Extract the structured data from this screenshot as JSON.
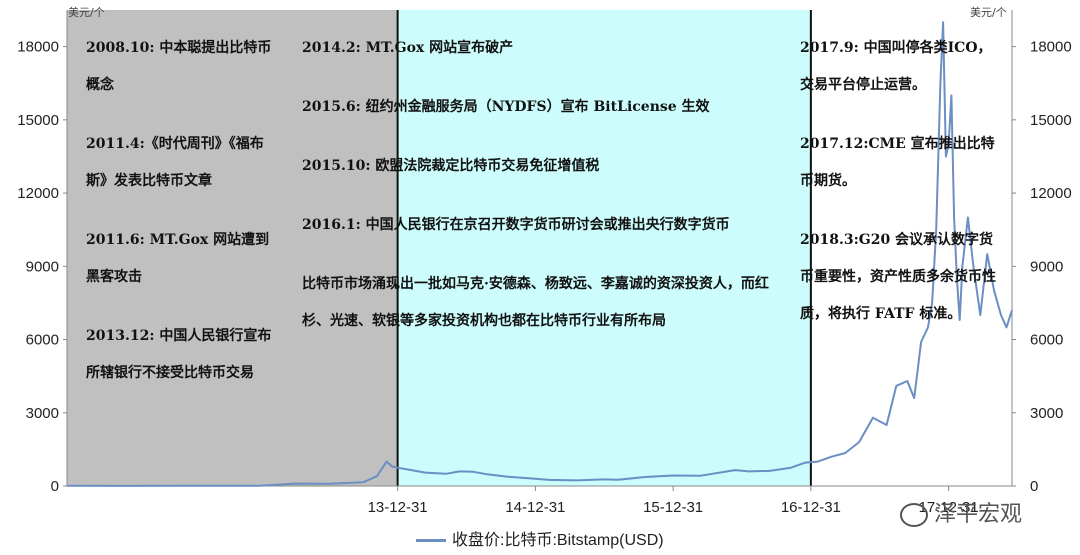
{
  "chart_data": {
    "type": "line",
    "left_unit": "美元/个",
    "right_unit": "美元/个",
    "y_ticks": [
      0,
      3000,
      6000,
      9000,
      12000,
      15000,
      18000
    ],
    "ylim": [
      0,
      19500
    ],
    "x_tick_labels": [
      "13-12-31",
      "14-12-31",
      "15-12-31",
      "16-12-31",
      "17-12-31"
    ],
    "series": [
      {
        "name": "收盘价:比特币:Bitstamp(USD)",
        "color": "#6b8ec3",
        "points": [
          [
            2011.6,
            10
          ],
          [
            2012.0,
            6
          ],
          [
            2012.4,
            7
          ],
          [
            2012.8,
            11
          ],
          [
            2013.0,
            13
          ],
          [
            2013.25,
            100
          ],
          [
            2013.5,
            95
          ],
          [
            2013.75,
            150
          ],
          [
            2013.85,
            400
          ],
          [
            2013.92,
            1000
          ],
          [
            2013.96,
            800
          ],
          [
            2014.0,
            750
          ],
          [
            2014.1,
            650
          ],
          [
            2014.2,
            550
          ],
          [
            2014.35,
            500
          ],
          [
            2014.45,
            600
          ],
          [
            2014.55,
            580
          ],
          [
            2014.65,
            480
          ],
          [
            2014.8,
            380
          ],
          [
            2015.0,
            300
          ],
          [
            2015.1,
            250
          ],
          [
            2015.3,
            230
          ],
          [
            2015.5,
            270
          ],
          [
            2015.6,
            260
          ],
          [
            2015.8,
            370
          ],
          [
            2016.0,
            430
          ],
          [
            2016.2,
            420
          ],
          [
            2016.45,
            650
          ],
          [
            2016.55,
            600
          ],
          [
            2016.7,
            620
          ],
          [
            2016.85,
            740
          ],
          [
            2016.96,
            960
          ],
          [
            2017.05,
            1000
          ],
          [
            2017.15,
            1200
          ],
          [
            2017.25,
            1350
          ],
          [
            2017.35,
            1800
          ],
          [
            2017.45,
            2800
          ],
          [
            2017.55,
            2500
          ],
          [
            2017.62,
            4100
          ],
          [
            2017.7,
            4300
          ],
          [
            2017.75,
            3600
          ],
          [
            2017.8,
            5900
          ],
          [
            2017.85,
            6500
          ],
          [
            2017.88,
            7500
          ],
          [
            2017.91,
            10500
          ],
          [
            2017.94,
            16500
          ],
          [
            2017.96,
            19000
          ],
          [
            2017.98,
            13500
          ],
          [
            2018.0,
            14000
          ],
          [
            2018.02,
            16000
          ],
          [
            2018.04,
            11000
          ],
          [
            2018.06,
            8500
          ],
          [
            2018.08,
            6800
          ],
          [
            2018.1,
            9000
          ],
          [
            2018.14,
            11000
          ],
          [
            2018.18,
            9000
          ],
          [
            2018.23,
            7000
          ],
          [
            2018.28,
            9500
          ],
          [
            2018.33,
            8000
          ],
          [
            2018.38,
            7000
          ],
          [
            2018.42,
            6500
          ],
          [
            2018.46,
            7200
          ]
        ]
      }
    ],
    "periods": [
      {
        "name": "period-1",
        "x0": 2011.6,
        "x1": 2014.0,
        "fill": "#c0c0c0"
      },
      {
        "name": "period-2",
        "x0": 2014.0,
        "x1": 2017.0,
        "fill": "#ccfcfc"
      },
      {
        "name": "period-3",
        "x0": 2017.0,
        "x1": 2018.46,
        "fill": "#ffffff"
      }
    ],
    "annotations": {
      "period1": [
        "2008.10: 中本聪提出比特币概念",
        "2011.4:《时代周刊》《福布斯》发表比特币文章",
        "2011.6: MT.Gox 网站遭到黑客攻击",
        "2013.12: 中国人民银行宣布所辖银行不接受比特币交易"
      ],
      "period2": [
        "2014.2: MT.Gox 网站宣布破产",
        "2015.6: 纽约州金融服务局（NYDFS）宣布 BitLicense 生效",
        "2015.10: 欧盟法院裁定比特币交易免征增值税",
        "2016.1: 中国人民银行在京召开数字货币研讨会或推出央行数字货币",
        "比特币市场涌现出一批如马克·安德森、杨致远、李嘉诚的资深投资人，而红杉、光速、软银等多家投资机构也都在比特币行业有所布局"
      ],
      "period3": [
        "2017.9: 中国叫停各类ICO，交易平台停止运营。",
        "2017.12:CME 宣布推出比特币期货。",
        "2018.3:G20 会议承认数字货币重要性，资产性质多余货币性质，将执行 FATF 标准。"
      ]
    },
    "legend": "收盘价:比特币:Bitstamp(USD)",
    "legend_position": "bottom"
  },
  "watermark": "泽平宏观"
}
